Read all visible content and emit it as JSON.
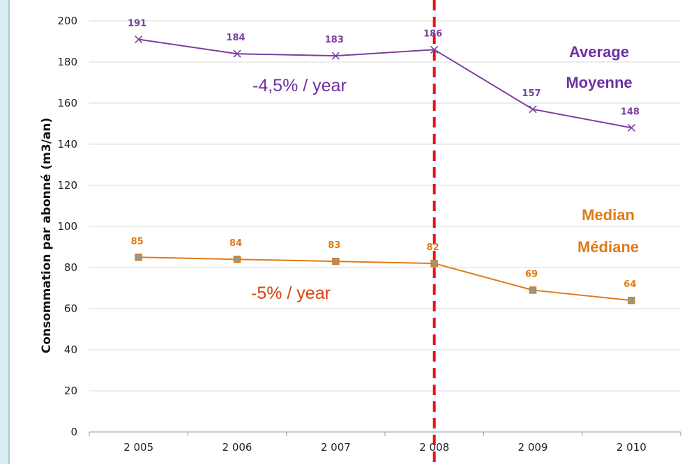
{
  "colors": {
    "average": "#7b3fa0",
    "median": "#e07b1a",
    "median_marker": "#8e9a8c",
    "cutoff": "#e3141b",
    "grid": "#d9d9d9",
    "rate_average": "#7030a0",
    "rate_median": "#d9430f"
  },
  "chart_data": {
    "type": "line",
    "title": "",
    "xlabel": "",
    "ylabel": "Consommation par abonné (m3/an)",
    "categories": [
      "2 005",
      "2 006",
      "2 007",
      "2 008",
      "2 009",
      "2 010"
    ],
    "ylim": [
      0,
      200
    ],
    "yticks": [
      0,
      20,
      40,
      60,
      80,
      100,
      120,
      140,
      160,
      180,
      200
    ],
    "grid": true,
    "series": [
      {
        "key": "average",
        "values": [
          191,
          184,
          183,
          186,
          157,
          148
        ],
        "labels": [
          "191",
          "184",
          "183",
          "186",
          "157",
          "148"
        ],
        "marker": "x"
      },
      {
        "key": "median",
        "values": [
          85,
          84,
          83,
          82,
          69,
          64
        ],
        "labels": [
          "85",
          "84",
          "83",
          "82",
          "69",
          "64"
        ],
        "marker": "square"
      }
    ],
    "reference_line": {
      "x_category": "2 008",
      "style": "dashed"
    },
    "annotations": {
      "average_rate": "-4,5% / year",
      "median_rate": "-5% / year",
      "average_legend_en": "Average",
      "average_legend_fr": "Moyenne",
      "median_legend_en": "Median",
      "median_legend_fr": "Médiane"
    }
  }
}
